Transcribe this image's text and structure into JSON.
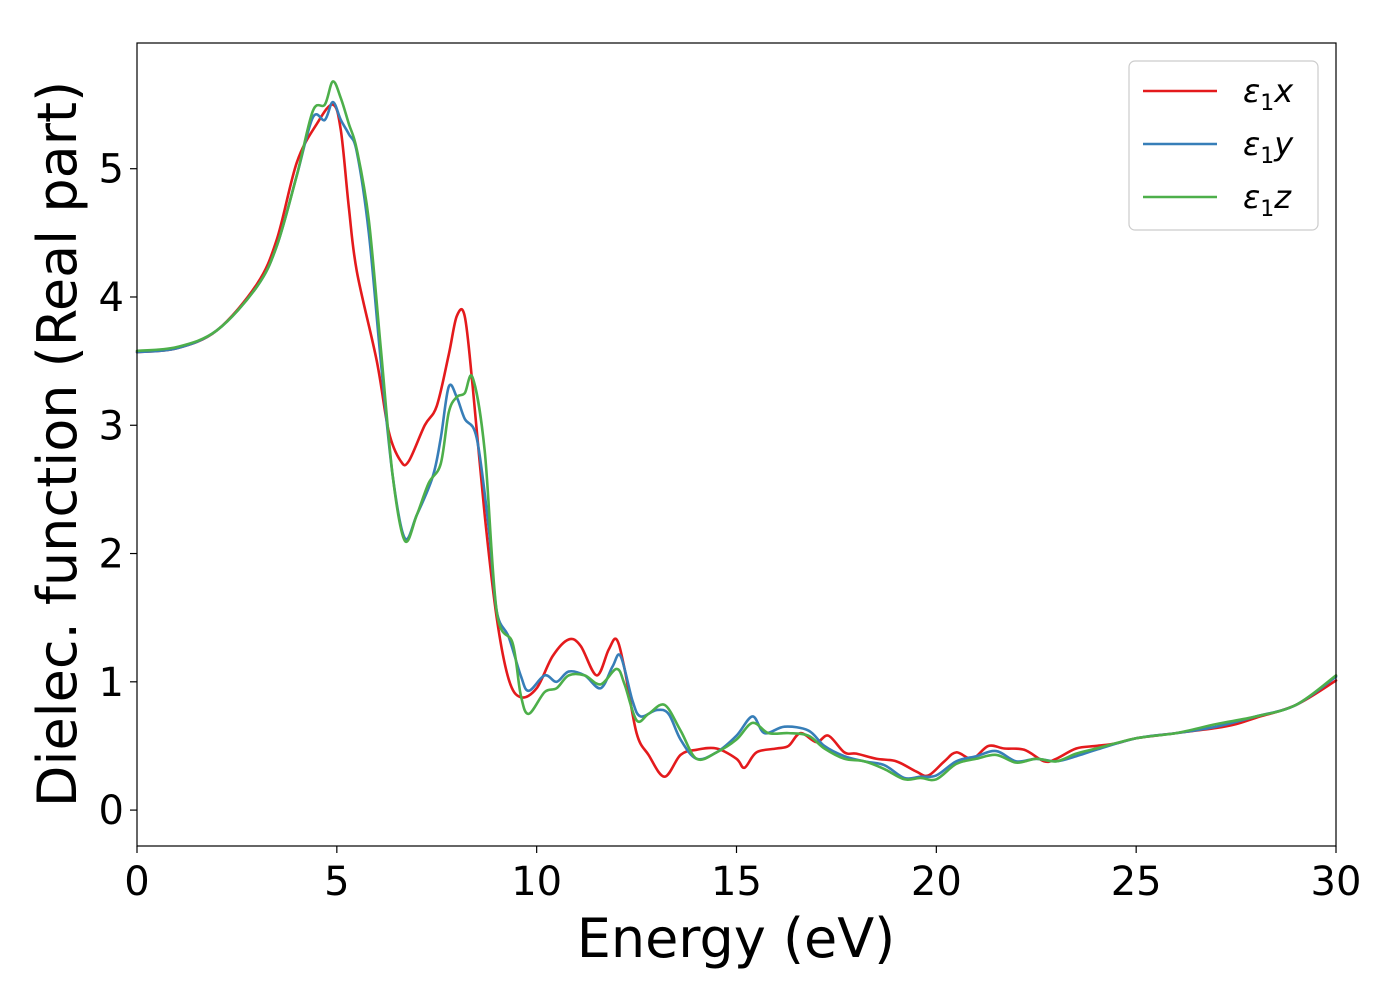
{
  "chart_data": {
    "type": "line",
    "title": "",
    "xlabel": "Energy (eV)",
    "ylabel": "Dielec. function (Real part)",
    "xlim": [
      0,
      30
    ],
    "ylim": [
      -0.28,
      5.98
    ],
    "xticks": [
      0,
      5,
      10,
      15,
      20,
      25,
      30
    ],
    "yticks": [
      0,
      1,
      2,
      3,
      4,
      5
    ],
    "grid": false,
    "legend": {
      "placement": "top-right"
    },
    "series": [
      {
        "name": "ε1x",
        "legend_main": "ε",
        "legend_sub": "1",
        "legend_var": "x",
        "color": "#e41a1c",
        "points": [
          [
            0,
            3.57
          ],
          [
            1,
            3.6
          ],
          [
            2,
            3.74
          ],
          [
            3,
            4.1
          ],
          [
            3.5,
            4.45
          ],
          [
            4,
            5.05
          ],
          [
            4.5,
            5.35
          ],
          [
            4.9,
            5.5
          ],
          [
            5.1,
            5.3
          ],
          [
            5.3,
            4.7
          ],
          [
            5.5,
            4.2
          ],
          [
            6,
            3.5
          ],
          [
            6.3,
            2.95
          ],
          [
            6.6,
            2.72
          ],
          [
            6.8,
            2.72
          ],
          [
            7.2,
            3.0
          ],
          [
            7.5,
            3.15
          ],
          [
            7.8,
            3.55
          ],
          [
            8.0,
            3.85
          ],
          [
            8.2,
            3.85
          ],
          [
            8.4,
            3.3
          ],
          [
            8.7,
            2.3
          ],
          [
            9.0,
            1.5
          ],
          [
            9.3,
            1.02
          ],
          [
            9.6,
            0.88
          ],
          [
            10.0,
            0.95
          ],
          [
            10.4,
            1.2
          ],
          [
            10.8,
            1.33
          ],
          [
            11.1,
            1.28
          ],
          [
            11.5,
            1.05
          ],
          [
            11.8,
            1.25
          ],
          [
            12.0,
            1.33
          ],
          [
            12.2,
            1.1
          ],
          [
            12.5,
            0.6
          ],
          [
            12.8,
            0.43
          ],
          [
            13.2,
            0.26
          ],
          [
            13.6,
            0.43
          ],
          [
            14.0,
            0.47
          ],
          [
            14.5,
            0.48
          ],
          [
            15.0,
            0.4
          ],
          [
            15.2,
            0.33
          ],
          [
            15.5,
            0.45
          ],
          [
            16.0,
            0.48
          ],
          [
            16.3,
            0.5
          ],
          [
            16.6,
            0.6
          ],
          [
            17.0,
            0.53
          ],
          [
            17.3,
            0.58
          ],
          [
            17.7,
            0.45
          ],
          [
            18.0,
            0.44
          ],
          [
            18.5,
            0.4
          ],
          [
            19.0,
            0.38
          ],
          [
            19.5,
            0.3
          ],
          [
            19.8,
            0.27
          ],
          [
            20.2,
            0.38
          ],
          [
            20.5,
            0.45
          ],
          [
            20.9,
            0.4
          ],
          [
            21.3,
            0.5
          ],
          [
            21.7,
            0.48
          ],
          [
            22.2,
            0.47
          ],
          [
            22.7,
            0.38
          ],
          [
            23.0,
            0.4
          ],
          [
            23.5,
            0.48
          ],
          [
            24.0,
            0.5
          ],
          [
            24.5,
            0.52
          ],
          [
            25.0,
            0.56
          ],
          [
            26.0,
            0.6
          ],
          [
            27.0,
            0.64
          ],
          [
            27.5,
            0.67
          ],
          [
            28.0,
            0.72
          ],
          [
            29.0,
            0.82
          ],
          [
            30.0,
            1.01
          ]
        ]
      },
      {
        "name": "ε1y",
        "legend_main": "ε",
        "legend_sub": "1",
        "legend_var": "y",
        "color": "#377eb8",
        "points": [
          [
            0,
            3.57
          ],
          [
            1,
            3.6
          ],
          [
            2,
            3.74
          ],
          [
            3,
            4.08
          ],
          [
            3.5,
            4.4
          ],
          [
            4,
            4.95
          ],
          [
            4.4,
            5.4
          ],
          [
            4.7,
            5.38
          ],
          [
            4.9,
            5.52
          ],
          [
            5.1,
            5.38
          ],
          [
            5.3,
            5.27
          ],
          [
            5.5,
            5.13
          ],
          [
            5.8,
            4.5
          ],
          [
            6.1,
            3.5
          ],
          [
            6.4,
            2.6
          ],
          [
            6.7,
            2.12
          ],
          [
            7.0,
            2.3
          ],
          [
            7.4,
            2.6
          ],
          [
            7.6,
            2.9
          ],
          [
            7.8,
            3.3
          ],
          [
            8.0,
            3.22
          ],
          [
            8.2,
            3.05
          ],
          [
            8.5,
            2.9
          ],
          [
            8.8,
            2.2
          ],
          [
            9.0,
            1.55
          ],
          [
            9.3,
            1.35
          ],
          [
            9.6,
            1.05
          ],
          [
            9.8,
            0.93
          ],
          [
            10.2,
            1.05
          ],
          [
            10.5,
            1.0
          ],
          [
            10.8,
            1.08
          ],
          [
            11.2,
            1.05
          ],
          [
            11.6,
            0.95
          ],
          [
            11.9,
            1.12
          ],
          [
            12.1,
            1.2
          ],
          [
            12.4,
            0.85
          ],
          [
            12.6,
            0.73
          ],
          [
            13.0,
            0.78
          ],
          [
            13.3,
            0.75
          ],
          [
            13.6,
            0.55
          ],
          [
            14.0,
            0.4
          ],
          [
            14.5,
            0.45
          ],
          [
            15.0,
            0.58
          ],
          [
            15.4,
            0.73
          ],
          [
            15.7,
            0.6
          ],
          [
            16.2,
            0.65
          ],
          [
            16.8,
            0.62
          ],
          [
            17.2,
            0.5
          ],
          [
            17.7,
            0.42
          ],
          [
            18.2,
            0.38
          ],
          [
            18.7,
            0.35
          ],
          [
            19.2,
            0.25
          ],
          [
            19.6,
            0.26
          ],
          [
            20.0,
            0.27
          ],
          [
            20.5,
            0.38
          ],
          [
            21.0,
            0.42
          ],
          [
            21.5,
            0.46
          ],
          [
            22.0,
            0.38
          ],
          [
            22.5,
            0.4
          ],
          [
            23.0,
            0.38
          ],
          [
            23.5,
            0.42
          ],
          [
            24.0,
            0.47
          ],
          [
            25.0,
            0.56
          ],
          [
            26.0,
            0.6
          ],
          [
            27.0,
            0.65
          ],
          [
            28.0,
            0.73
          ],
          [
            29.0,
            0.82
          ],
          [
            30.0,
            1.04
          ]
        ]
      },
      {
        "name": "ε1z",
        "legend_main": "ε",
        "legend_sub": "1",
        "legend_var": "z",
        "color": "#4daf4a",
        "points": [
          [
            0,
            3.58
          ],
          [
            1,
            3.61
          ],
          [
            2,
            3.74
          ],
          [
            3,
            4.08
          ],
          [
            3.5,
            4.4
          ],
          [
            4,
            4.95
          ],
          [
            4.4,
            5.45
          ],
          [
            4.7,
            5.5
          ],
          [
            4.9,
            5.68
          ],
          [
            5.1,
            5.55
          ],
          [
            5.3,
            5.35
          ],
          [
            5.5,
            5.15
          ],
          [
            5.8,
            4.6
          ],
          [
            6.1,
            3.6
          ],
          [
            6.4,
            2.6
          ],
          [
            6.7,
            2.1
          ],
          [
            7.0,
            2.3
          ],
          [
            7.3,
            2.55
          ],
          [
            7.6,
            2.7
          ],
          [
            7.8,
            3.1
          ],
          [
            8.0,
            3.22
          ],
          [
            8.2,
            3.25
          ],
          [
            8.4,
            3.37
          ],
          [
            8.7,
            2.8
          ],
          [
            9.0,
            1.55
          ],
          [
            9.4,
            1.3
          ],
          [
            9.6,
            0.9
          ],
          [
            9.8,
            0.75
          ],
          [
            10.2,
            0.92
          ],
          [
            10.5,
            0.95
          ],
          [
            10.8,
            1.05
          ],
          [
            11.2,
            1.05
          ],
          [
            11.6,
            0.98
          ],
          [
            12.0,
            1.1
          ],
          [
            12.2,
            0.98
          ],
          [
            12.5,
            0.7
          ],
          [
            12.8,
            0.75
          ],
          [
            13.2,
            0.82
          ],
          [
            13.6,
            0.62
          ],
          [
            14.0,
            0.4
          ],
          [
            14.5,
            0.45
          ],
          [
            15.0,
            0.55
          ],
          [
            15.4,
            0.68
          ],
          [
            15.8,
            0.6
          ],
          [
            16.3,
            0.6
          ],
          [
            16.8,
            0.58
          ],
          [
            17.2,
            0.48
          ],
          [
            17.7,
            0.4
          ],
          [
            18.2,
            0.38
          ],
          [
            18.7,
            0.32
          ],
          [
            19.2,
            0.24
          ],
          [
            19.6,
            0.25
          ],
          [
            20.0,
            0.24
          ],
          [
            20.5,
            0.36
          ],
          [
            21.0,
            0.4
          ],
          [
            21.5,
            0.43
          ],
          [
            22.0,
            0.37
          ],
          [
            22.5,
            0.4
          ],
          [
            23.0,
            0.38
          ],
          [
            23.5,
            0.44
          ],
          [
            24.0,
            0.48
          ],
          [
            25.0,
            0.56
          ],
          [
            26.0,
            0.6
          ],
          [
            27.0,
            0.67
          ],
          [
            28.0,
            0.73
          ],
          [
            29.0,
            0.82
          ],
          [
            30.0,
            1.05
          ]
        ]
      }
    ]
  }
}
